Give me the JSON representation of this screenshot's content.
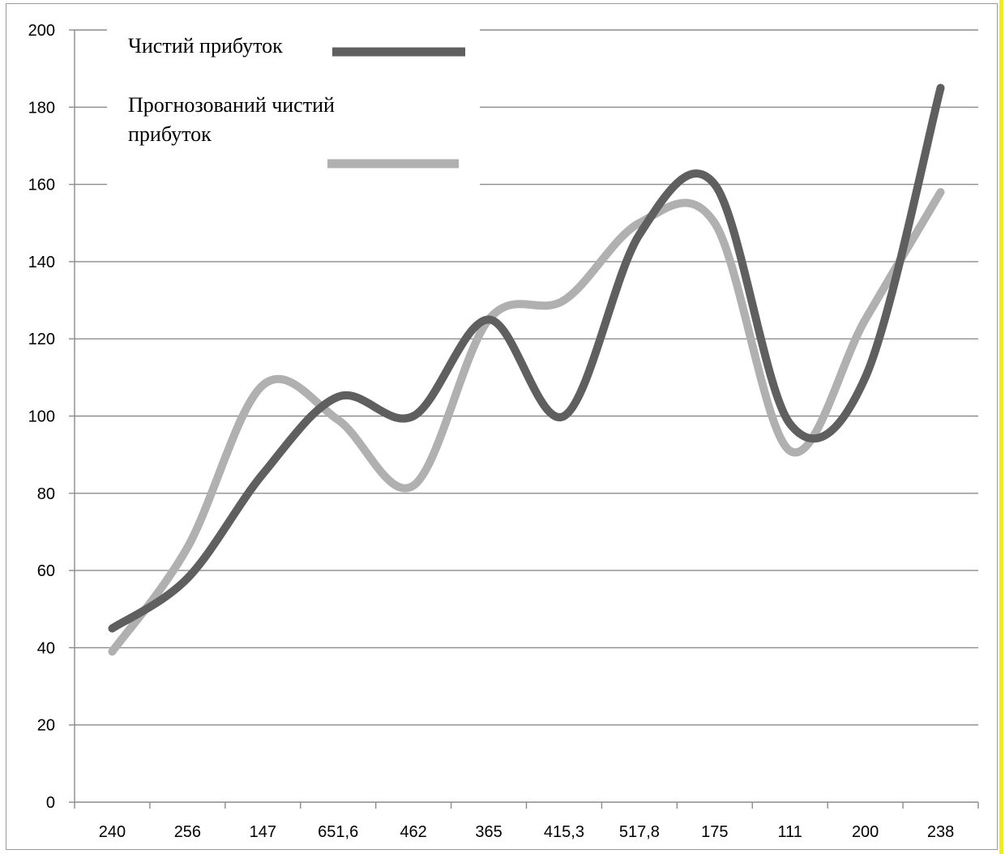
{
  "chart_data": {
    "type": "line",
    "smooth": true,
    "categories": [
      "240",
      "256",
      "147",
      "651,6",
      "462",
      "365",
      "415,3",
      "517,8",
      "175",
      "111",
      "200",
      "238"
    ],
    "series": [
      {
        "name": "Чистий прибуток",
        "color": "#5f5f5f",
        "values": [
          45,
          58,
          85,
          105,
          100,
          125,
          100,
          147,
          160,
          98,
          110,
          185
        ]
      },
      {
        "name_lines": [
          "Прогнозований чистий",
          "прибуток"
        ],
        "color": "#b0b0b0",
        "values": [
          39,
          66,
          108,
          99,
          82,
          125,
          130,
          150,
          150,
          91,
          125,
          158
        ]
      }
    ],
    "ylim": [
      0,
      200
    ],
    "yticks": [
      "0",
      "20",
      "40",
      "60",
      "80",
      "100",
      "120",
      "140",
      "160",
      "180",
      "200"
    ],
    "grid": true,
    "legend_position": "top-left"
  }
}
